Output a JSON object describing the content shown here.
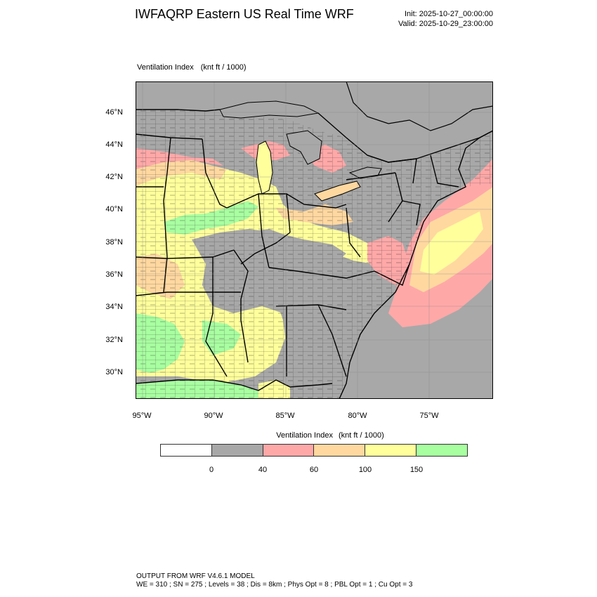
{
  "header": {
    "title": "IWFAQRP Eastern US Real Time WRF",
    "init": "Init: 2025-10-27_00:00:00",
    "valid": "Valid: 2025-10-29_23:00:00"
  },
  "plot": {
    "field_name": "Ventilation Index",
    "units": "(knt ft / 1000)"
  },
  "axes": {
    "lat_labels": [
      "46°N",
      "44°N",
      "42°N",
      "40°N",
      "38°N",
      "36°N",
      "34°N",
      "32°N",
      "30°N"
    ],
    "lon_labels": [
      "95°W",
      "90°W",
      "85°W",
      "80°W",
      "75°W"
    ]
  },
  "colorbar": {
    "title": "Ventilation Index",
    "units": "(knt ft / 1000)",
    "colors": [
      "#ffffff",
      "#a8a8a8",
      "#ffa8a8",
      "#ffd8a0",
      "#ffff9c",
      "#a8ffa0"
    ],
    "labels": [
      "0",
      "40",
      "60",
      "100",
      "150"
    ]
  },
  "legend_colors": {
    "water": "#a8a8a8",
    "grey": "#a8a8a8",
    "pink": "#ffa8a8",
    "orange": "#ffd8a0",
    "yellow": "#ffff9c",
    "green": "#a8ffa0"
  },
  "footer": {
    "line1": "OUTPUT FROM WRF V4.6.1 MODEL",
    "line2": "WE = 310 ; SN = 275 ; Levels = 38 ; Dis = 8km ; Phys Opt = 8 ; PBL Opt = 1 ; Cu Opt = 3"
  }
}
